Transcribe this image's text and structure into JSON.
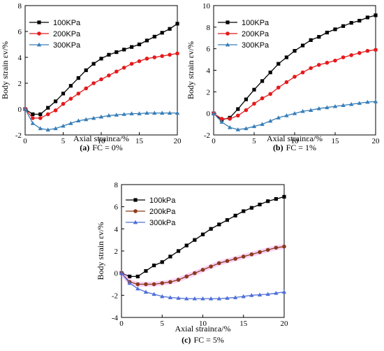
{
  "chart_data": [
    {
      "type": "line",
      "panel_letter": "(a)",
      "caption": "FC = 0%",
      "ylabel": "Body strain εv/%",
      "xlabel": "Axial strainεa/%",
      "xlim": [
        0,
        20
      ],
      "ylim": [
        -2,
        8
      ],
      "xticks": [
        "0",
        "5",
        "10",
        "15",
        "20"
      ],
      "yticks": [
        "-2",
        "0",
        "2",
        "4",
        "6",
        "8"
      ],
      "legend_position": "top-left",
      "series": [
        {
          "name": "100KPa",
          "color": "#000000",
          "marker": "square",
          "band": false,
          "x": [
            0,
            1,
            2,
            3,
            4,
            5,
            6,
            7,
            8,
            9,
            10,
            11,
            12,
            13,
            14,
            15,
            16,
            17,
            18,
            19,
            20
          ],
          "y": [
            0,
            -0.4,
            -0.4,
            0.1,
            0.6,
            1.2,
            1.8,
            2.4,
            3.0,
            3.5,
            3.9,
            4.2,
            4.4,
            4.6,
            4.8,
            5.0,
            5.3,
            5.6,
            5.9,
            6.2,
            6.6
          ]
        },
        {
          "name": "200KPa",
          "color": "#e41a1c",
          "marker": "circle",
          "band": false,
          "x": [
            0,
            1,
            2,
            3,
            4,
            5,
            6,
            7,
            8,
            9,
            10,
            11,
            12,
            13,
            14,
            15,
            16,
            17,
            18,
            19,
            20
          ],
          "y": [
            0,
            -0.7,
            -0.7,
            -0.4,
            -0.1,
            0.4,
            0.8,
            1.2,
            1.6,
            2.0,
            2.3,
            2.6,
            2.9,
            3.2,
            3.5,
            3.7,
            3.9,
            4.0,
            4.1,
            4.2,
            4.3
          ]
        },
        {
          "name": "300KPa",
          "color": "#377eb8",
          "marker": "triangle",
          "band": false,
          "x": [
            0,
            1,
            2,
            3,
            4,
            5,
            6,
            7,
            8,
            9,
            10,
            11,
            12,
            13,
            14,
            15,
            16,
            17,
            18,
            19,
            20
          ],
          "y": [
            0,
            -1.1,
            -1.5,
            -1.6,
            -1.5,
            -1.3,
            -1.1,
            -0.9,
            -0.8,
            -0.7,
            -0.6,
            -0.5,
            -0.45,
            -0.4,
            -0.35,
            -0.35,
            -0.3,
            -0.3,
            -0.3,
            -0.3,
            -0.3
          ]
        }
      ]
    },
    {
      "type": "line",
      "panel_letter": "(b)",
      "caption": "FC = 1%",
      "ylabel": "Body strain εv/%",
      "xlabel": "Axial strainεa/%",
      "xlim": [
        0,
        20
      ],
      "ylim": [
        -2,
        10
      ],
      "xticks": [
        "0",
        "5",
        "10",
        "15",
        "20"
      ],
      "yticks": [
        "-2",
        "0",
        "2",
        "4",
        "6",
        "8",
        "10"
      ],
      "legend_position": "top-left",
      "series": [
        {
          "name": "100KPa",
          "color": "#000000",
          "marker": "square",
          "band": false,
          "x": [
            0,
            1,
            2,
            3,
            4,
            5,
            6,
            7,
            8,
            9,
            10,
            11,
            12,
            13,
            14,
            15,
            16,
            17,
            18,
            19,
            20
          ],
          "y": [
            0,
            -0.6,
            -0.4,
            0.4,
            1.3,
            2.2,
            3.0,
            3.8,
            4.6,
            5.2,
            5.8,
            6.3,
            6.8,
            7.1,
            7.5,
            7.8,
            8.1,
            8.4,
            8.6,
            8.9,
            9.1
          ]
        },
        {
          "name": "200KPa",
          "color": "#e41a1c",
          "marker": "circle",
          "band": false,
          "x": [
            0,
            1,
            2,
            3,
            4,
            5,
            6,
            7,
            8,
            9,
            10,
            11,
            12,
            13,
            14,
            15,
            16,
            17,
            18,
            19,
            20
          ],
          "y": [
            0,
            -0.5,
            -0.5,
            -0.2,
            0.3,
            0.9,
            1.4,
            1.8,
            2.4,
            2.9,
            3.4,
            3.8,
            4.2,
            4.5,
            4.7,
            4.9,
            5.2,
            5.4,
            5.6,
            5.8,
            5.9
          ]
        },
        {
          "name": "300KPa",
          "color": "#377eb8",
          "marker": "triangle",
          "band": false,
          "x": [
            0,
            1,
            2,
            3,
            4,
            5,
            6,
            7,
            8,
            9,
            10,
            11,
            12,
            13,
            14,
            15,
            16,
            17,
            18,
            19,
            20
          ],
          "y": [
            0,
            -0.8,
            -1.3,
            -1.5,
            -1.4,
            -1.2,
            -1.0,
            -0.7,
            -0.4,
            -0.2,
            0.0,
            0.2,
            0.3,
            0.45,
            0.55,
            0.65,
            0.75,
            0.85,
            0.95,
            1.05,
            1.1
          ]
        }
      ]
    },
    {
      "type": "line",
      "panel_letter": "(c)",
      "caption": "FC = 5%",
      "ylabel": "Body strain εv/%",
      "xlabel": "Axial strainεa/%",
      "xlim": [
        0,
        20
      ],
      "ylim": [
        -4,
        8
      ],
      "xticks": [
        "0",
        "5",
        "10",
        "15",
        "20"
      ],
      "yticks": [
        "-4",
        "-2",
        "0",
        "2",
        "4",
        "6",
        "8"
      ],
      "legend_position": "top-left",
      "series": [
        {
          "name": "100kPa",
          "color": "#000000",
          "marker": "square",
          "band": false,
          "x": [
            0,
            1,
            2,
            3,
            4,
            5,
            6,
            7,
            8,
            9,
            10,
            11,
            12,
            13,
            14,
            15,
            16,
            17,
            18,
            19,
            20
          ],
          "y": [
            0,
            -0.3,
            -0.3,
            0.2,
            0.7,
            1.0,
            1.5,
            2.0,
            2.5,
            3.0,
            3.5,
            4.0,
            4.4,
            4.8,
            5.2,
            5.6,
            5.9,
            6.2,
            6.5,
            6.7,
            6.9
          ]
        },
        {
          "name": "200kPa",
          "color": "#8b3a1a",
          "marker": "circle",
          "band": true,
          "band_color": "#ee82ee",
          "x": [
            0,
            1,
            2,
            3,
            4,
            5,
            6,
            7,
            8,
            9,
            10,
            11,
            12,
            13,
            14,
            15,
            16,
            17,
            18,
            19,
            20
          ],
          "y": [
            0,
            -0.8,
            -1.0,
            -1.0,
            -1.0,
            -0.9,
            -0.8,
            -0.6,
            -0.3,
            0.0,
            0.3,
            0.6,
            0.9,
            1.1,
            1.3,
            1.5,
            1.7,
            1.9,
            2.1,
            2.3,
            2.4
          ]
        },
        {
          "name": "300kPa",
          "color": "#4f6fd8",
          "marker": "triangle",
          "band": false,
          "x": [
            0,
            1,
            2,
            3,
            4,
            5,
            6,
            7,
            8,
            9,
            10,
            11,
            12,
            13,
            14,
            15,
            16,
            17,
            18,
            19,
            20
          ],
          "y": [
            0,
            -0.9,
            -1.4,
            -1.7,
            -1.9,
            -2.1,
            -2.2,
            -2.25,
            -2.3,
            -2.3,
            -2.3,
            -2.3,
            -2.3,
            -2.25,
            -2.2,
            -2.1,
            -2.0,
            -1.95,
            -1.9,
            -1.8,
            -1.7
          ]
        }
      ]
    }
  ]
}
